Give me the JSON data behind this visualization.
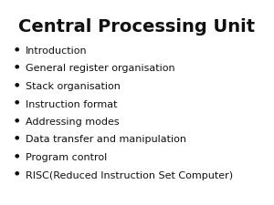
{
  "title": "Central Processing Unit",
  "title_fontsize": 14,
  "title_fontweight": "bold",
  "title_color": "#111111",
  "bullet_items": [
    "Introduction",
    "General register organisation",
    "Stack organisation",
    "Instruction format",
    "Addressing modes",
    "Data transfer and manipulation",
    "Program control",
    "RISC(Reduced Instruction Set Computer)"
  ],
  "bullet_fontsize": 8.0,
  "bullet_color": "#111111",
  "bullet_marker": "●",
  "bullet_marker_size": 4.5,
  "background_color": "#ffffff",
  "fig_width": 3.0,
  "fig_height": 2.25,
  "dpi": 100
}
